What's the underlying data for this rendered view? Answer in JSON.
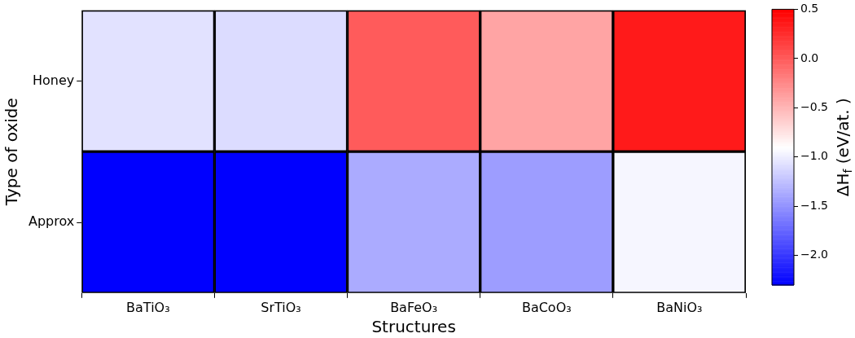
{
  "chart_data": {
    "type": "heatmap",
    "xlabel": "Structures",
    "ylabel": "Type of oxide",
    "clabel": "ΔH$_{f}$ (eV/at. )",
    "categories": [
      "BaTiO₃",
      "SrTiO₃",
      "BaFeO₃",
      "BaCoO₃",
      "BaNiO₃"
    ],
    "y_categories": [
      "Honey",
      "Approx"
    ],
    "cells": [
      [
        -1.06,
        -1.09,
        0.0,
        -0.4,
        0.36
      ],
      [
        -2.3,
        -2.3,
        -1.36,
        -1.44,
        -0.95
      ]
    ],
    "clim": [
      -2.3,
      0.5
    ],
    "cticks": [
      {
        "value": 0.5,
        "label": "0.5"
      },
      {
        "value": 0.0,
        "label": "0.0"
      },
      {
        "value": -0.5,
        "label": "−0.5"
      },
      {
        "value": -1.0,
        "label": "−1.0"
      },
      {
        "value": -1.5,
        "label": "−1.5"
      },
      {
        "value": -2.0,
        "label": "−2.0"
      }
    ]
  }
}
